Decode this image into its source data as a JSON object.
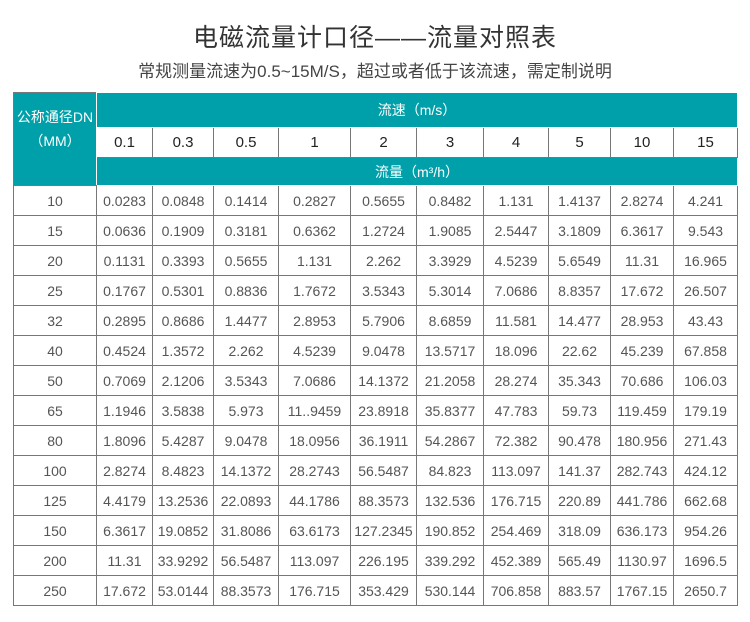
{
  "title": "电磁流量计口径——流量对照表",
  "subtitle": "常规测量流速为0.5~15M/S，超过或者低于该流速，需定制说明",
  "table": {
    "dn_header_line1": "公称通径DN",
    "dn_header_line2": "（MM）",
    "speed_header": "流速（m/s）",
    "flow_header": "流量（m³/h）",
    "speeds": [
      "0.1",
      "0.3",
      "0.5",
      "1",
      "2",
      "3",
      "4",
      "5",
      "10",
      "15"
    ],
    "rows": [
      {
        "dn": "10",
        "values": [
          "0.0283",
          "0.0848",
          "0.1414",
          "0.2827",
          "0.5655",
          "0.8482",
          "1.131",
          "1.4137",
          "2.8274",
          "4.241"
        ]
      },
      {
        "dn": "15",
        "values": [
          "0.0636",
          "0.1909",
          "0.3181",
          "0.6362",
          "1.2724",
          "1.9085",
          "2.5447",
          "3.1809",
          "6.3617",
          "9.543"
        ]
      },
      {
        "dn": "20",
        "values": [
          "0.1131",
          "0.3393",
          "0.5655",
          "1.131",
          "2.262",
          "3.3929",
          "4.5239",
          "5.6549",
          "11.31",
          "16.965"
        ]
      },
      {
        "dn": "25",
        "values": [
          "0.1767",
          "0.5301",
          "0.8836",
          "1.7672",
          "3.5343",
          "5.3014",
          "7.0686",
          "8.8357",
          "17.672",
          "26.507"
        ]
      },
      {
        "dn": "32",
        "values": [
          "0.2895",
          "0.8686",
          "1.4477",
          "2.8953",
          "5.7906",
          "8.6859",
          "11.581",
          "14.477",
          "28.953",
          "43.43"
        ]
      },
      {
        "dn": "40",
        "values": [
          "0.4524",
          "1.3572",
          "2.262",
          "4.5239",
          "9.0478",
          "13.5717",
          "18.096",
          "22.62",
          "45.239",
          "67.858"
        ]
      },
      {
        "dn": "50",
        "values": [
          "0.7069",
          "2.1206",
          "3.5343",
          "7.0686",
          "14.1372",
          "21.2058",
          "28.274",
          "35.343",
          "70.686",
          "106.03"
        ]
      },
      {
        "dn": "65",
        "values": [
          "1.1946",
          "3.5838",
          "5.973",
          "11..9459",
          "23.8918",
          "35.8377",
          "47.783",
          "59.73",
          "119.459",
          "179.19"
        ]
      },
      {
        "dn": "80",
        "values": [
          "1.8096",
          "5.4287",
          "9.0478",
          "18.0956",
          "36.1911",
          "54.2867",
          "72.382",
          "90.478",
          "180.956",
          "271.43"
        ]
      },
      {
        "dn": "100",
        "values": [
          "2.8274",
          "8.4823",
          "14.1372",
          "28.2743",
          "56.5487",
          "84.823",
          "113.097",
          "141.37",
          "282.743",
          "424.12"
        ]
      },
      {
        "dn": "125",
        "values": [
          "4.4179",
          "13.2536",
          "22.0893",
          "44.1786",
          "88.3573",
          "132.536",
          "176.715",
          "220.89",
          "441.786",
          "662.68"
        ]
      },
      {
        "dn": "150",
        "values": [
          "6.3617",
          "19.0852",
          "31.8086",
          "63.6173",
          "127.2345",
          "190.852",
          "254.469",
          "318.09",
          "636.173",
          "954.26"
        ]
      },
      {
        "dn": "200",
        "values": [
          "11.31",
          "33.9292",
          "56.5487",
          "113.097",
          "226.195",
          "339.292",
          "452.389",
          "565.49",
          "1130.97",
          "1696.5"
        ]
      },
      {
        "dn": "250",
        "values": [
          "17.672",
          "53.0144",
          "88.3573",
          "176.715",
          "353.429",
          "530.144",
          "706.858",
          "883.57",
          "1767.15",
          "2650.7"
        ]
      }
    ]
  },
  "colors": {
    "header": "#00a0aa",
    "border": "#777777"
  }
}
